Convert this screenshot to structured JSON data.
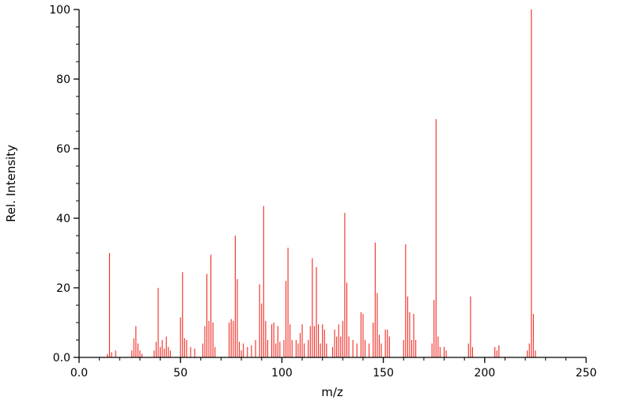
{
  "chart_data": {
    "type": "bar",
    "subtype": "mass-spectrum-stick",
    "title": "",
    "xlabel": "m/z",
    "ylabel": "Rel. Intensity",
    "xlim": [
      0,
      250
    ],
    "ylim": [
      0,
      100
    ],
    "grid": false,
    "legend": "none",
    "line_color": "#f0342c",
    "axis_color": "#000000",
    "x_ticks": {
      "values": [
        0,
        50,
        100,
        150,
        200,
        250
      ],
      "labels": [
        "0.0",
        "50",
        "100",
        "150",
        "200",
        "250"
      ]
    },
    "y_ticks": {
      "values": [
        0,
        20,
        40,
        60,
        80,
        100
      ],
      "labels": [
        "0.0",
        "20",
        "40",
        "60",
        "80",
        "100"
      ]
    },
    "x_minor_step": 10,
    "y_minor_step": 5,
    "peaks": [
      [
        14,
        1
      ],
      [
        15,
        30
      ],
      [
        16,
        1.5
      ],
      [
        18,
        2
      ],
      [
        26,
        2
      ],
      [
        27,
        5.5
      ],
      [
        28,
        9
      ],
      [
        29,
        4
      ],
      [
        30,
        2
      ],
      [
        31,
        1
      ],
      [
        37,
        2
      ],
      [
        38,
        4.5
      ],
      [
        39,
        20
      ],
      [
        40,
        3
      ],
      [
        41,
        5
      ],
      [
        42,
        2.5
      ],
      [
        43,
        6
      ],
      [
        44,
        3
      ],
      [
        45,
        2
      ],
      [
        50,
        11.5
      ],
      [
        51,
        24.5
      ],
      [
        52,
        5.5
      ],
      [
        53,
        5
      ],
      [
        55,
        3
      ],
      [
        57,
        2.5
      ],
      [
        61,
        4
      ],
      [
        62,
        9
      ],
      [
        63,
        24
      ],
      [
        64,
        10.5
      ],
      [
        65,
        29.5
      ],
      [
        66,
        10
      ],
      [
        67,
        3
      ],
      [
        74,
        10
      ],
      [
        75,
        11
      ],
      [
        76,
        10.5
      ],
      [
        77,
        35
      ],
      [
        78,
        22.5
      ],
      [
        79,
        4.5
      ],
      [
        80,
        2
      ],
      [
        81,
        4
      ],
      [
        83,
        3
      ],
      [
        85,
        3.5
      ],
      [
        87,
        5
      ],
      [
        89,
        21
      ],
      [
        90,
        15.5
      ],
      [
        91,
        43.5
      ],
      [
        92,
        10.5
      ],
      [
        93,
        5
      ],
      [
        95,
        9.5
      ],
      [
        96,
        10
      ],
      [
        97,
        4
      ],
      [
        98,
        9
      ],
      [
        99,
        4.5
      ],
      [
        101,
        5
      ],
      [
        102,
        22
      ],
      [
        103,
        31.5
      ],
      [
        104,
        9.5
      ],
      [
        105,
        5
      ],
      [
        107,
        5
      ],
      [
        108,
        4
      ],
      [
        109,
        7
      ],
      [
        110,
        9.5
      ],
      [
        111,
        4
      ],
      [
        113,
        5
      ],
      [
        114,
        9
      ],
      [
        115,
        28.5
      ],
      [
        116,
        9
      ],
      [
        117,
        26
      ],
      [
        118,
        9.5
      ],
      [
        119,
        4
      ],
      [
        120,
        9.5
      ],
      [
        121,
        8
      ],
      [
        122,
        4
      ],
      [
        125,
        3
      ],
      [
        126,
        8
      ],
      [
        127,
        6
      ],
      [
        128,
        9.5
      ],
      [
        129,
        6
      ],
      [
        130,
        10.5
      ],
      [
        131,
        41.5
      ],
      [
        132,
        21.5
      ],
      [
        133,
        6
      ],
      [
        135,
        5
      ],
      [
        137,
        4
      ],
      [
        139,
        13
      ],
      [
        140,
        12.5
      ],
      [
        141,
        5
      ],
      [
        143,
        4
      ],
      [
        145,
        10
      ],
      [
        146,
        33
      ],
      [
        147,
        18.5
      ],
      [
        148,
        6.5
      ],
      [
        149,
        4
      ],
      [
        151,
        8
      ],
      [
        152,
        8
      ],
      [
        153,
        6
      ],
      [
        160,
        5
      ],
      [
        161,
        32.5
      ],
      [
        162,
        17.5
      ],
      [
        163,
        13
      ],
      [
        164,
        5
      ],
      [
        165,
        12.5
      ],
      [
        166,
        5
      ],
      [
        174,
        4
      ],
      [
        175,
        16.5
      ],
      [
        176,
        68.5
      ],
      [
        177,
        6
      ],
      [
        178,
        3
      ],
      [
        180,
        3
      ],
      [
        181,
        2
      ],
      [
        192,
        4
      ],
      [
        193,
        17.5
      ],
      [
        194,
        3
      ],
      [
        205,
        3
      ],
      [
        206,
        2
      ],
      [
        207,
        3.5
      ],
      [
        221,
        2
      ],
      [
        222,
        4
      ],
      [
        223,
        100
      ],
      [
        224,
        12.5
      ],
      [
        225,
        2
      ]
    ]
  }
}
